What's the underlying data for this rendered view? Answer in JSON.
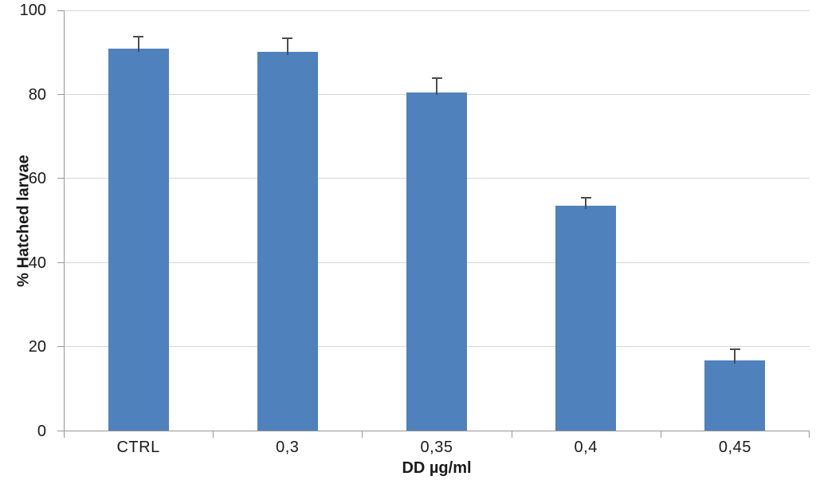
{
  "chart_data": {
    "type": "bar",
    "title": "",
    "xlabel": "DD µg/ml",
    "ylabel": "% Hatched larvae",
    "categories": [
      "CTRL",
      "0,3",
      "0,35",
      "0,4",
      "0,45"
    ],
    "values": [
      90.8,
      89.9,
      80.4,
      53.5,
      16.6
    ],
    "errors_plus": [
      3.0,
      3.5,
      3.5,
      1.9,
      2.9
    ],
    "ylim": [
      0,
      100
    ],
    "yticks": [
      0,
      20,
      40,
      60,
      80,
      100
    ],
    "grid": "horizontal-only",
    "legend": "none",
    "colors": {
      "bar": "#4f81bd",
      "error_bar": "#4d4d4d",
      "gridline": "#d6d6d6",
      "axis_line": "#969696",
      "text": "#1a1a1a"
    }
  }
}
